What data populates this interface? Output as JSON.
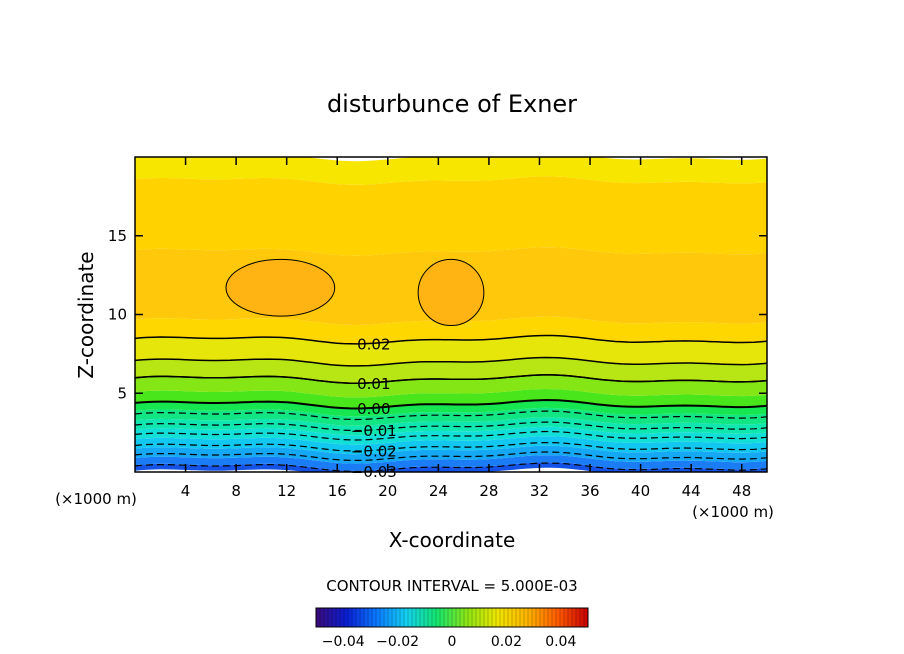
{
  "chart_data": {
    "type": "heatmap",
    "title": "disturbunce of Exner",
    "xlabel": "X-coordinate",
    "ylabel": "Z-coordinate",
    "x_unit_label": "(×1000 m)",
    "y_unit_label": "(×1000 m)",
    "xlim": [
      0,
      50
    ],
    "ylim": [
      0,
      20
    ],
    "x_ticks": [
      4,
      8,
      12,
      16,
      20,
      24,
      28,
      32,
      36,
      40,
      44,
      48
    ],
    "x_tick_labels": [
      "4",
      "8",
      "12",
      "16",
      "20",
      "24",
      "28",
      "32",
      "36",
      "40",
      "44",
      "48"
    ],
    "y_ticks": [
      5,
      10,
      15
    ],
    "y_tick_labels": [
      "5",
      "10",
      "15"
    ],
    "contour_interval_text": "CONTOUR INTERVAL = 5.000E-03",
    "contour_interval": 0.005,
    "contours": [
      {
        "value": -0.03,
        "label": "−0.03",
        "z": 0.3,
        "style": "dashed"
      },
      {
        "value": -0.025,
        "label": "",
        "z": 1.0,
        "style": "dashed"
      },
      {
        "value": -0.02,
        "label": "−0.02",
        "z": 1.6,
        "style": "dashed"
      },
      {
        "value": -0.015,
        "label": "",
        "z": 2.3,
        "style": "dashed"
      },
      {
        "value": -0.01,
        "label": "−0.01",
        "z": 2.9,
        "style": "dashed"
      },
      {
        "value": -0.005,
        "label": "",
        "z": 3.6,
        "style": "dashed"
      },
      {
        "value": 0.0,
        "label": "0.00",
        "z": 4.3,
        "style": "solid-bold"
      },
      {
        "value": 0.005,
        "label": "",
        "z": 5.9,
        "style": "solid"
      },
      {
        "value": 0.01,
        "label": "0.01",
        "z": 5.9,
        "style": "solid"
      },
      {
        "value": 0.015,
        "label": "",
        "z": 7.0,
        "style": "solid"
      },
      {
        "value": 0.02,
        "label": "0.02",
        "z": 8.4,
        "style": "solid"
      }
    ],
    "maxima_regions": [
      {
        "center_x": 11.5,
        "center_z": 11.7
      },
      {
        "center_x": 25.0,
        "center_z": 11.4
      }
    ],
    "colorbar": {
      "range": [
        -0.05,
        0.05
      ],
      "tick_values": [
        -0.04,
        -0.02,
        0,
        0.02,
        0.04
      ],
      "tick_labels": [
        "−0.04",
        "−0.02",
        "0",
        "0.02",
        "0.04"
      ],
      "colormap": [
        "#3b0a7a",
        "#0a1ed2",
        "#0a78ff",
        "#13d2f0",
        "#14e66e",
        "#8ce614",
        "#f0e600",
        "#ffb400",
        "#ff5a00",
        "#c80000"
      ]
    },
    "fill_bands": [
      {
        "from_z": 0.0,
        "to_z": 0.35,
        "color": "#1553e6"
      },
      {
        "from_z": 0.35,
        "to_z": 0.8,
        "color": "#1a7df6"
      },
      {
        "from_z": 0.8,
        "to_z": 1.4,
        "color": "#14a8f5"
      },
      {
        "from_z": 1.4,
        "to_z": 2.0,
        "color": "#13c8f0"
      },
      {
        "from_z": 2.0,
        "to_z": 2.6,
        "color": "#12dfd8"
      },
      {
        "from_z": 2.6,
        "to_z": 3.2,
        "color": "#10e6b0"
      },
      {
        "from_z": 3.2,
        "to_z": 3.8,
        "color": "#12e684"
      },
      {
        "from_z": 3.8,
        "to_z": 4.3,
        "color": "#16e650"
      },
      {
        "from_z": 4.3,
        "to_z": 5.0,
        "color": "#4ae61c"
      },
      {
        "from_z": 5.0,
        "to_z": 5.9,
        "color": "#84e614"
      },
      {
        "from_z": 5.9,
        "to_z": 7.0,
        "color": "#b8e614"
      },
      {
        "from_z": 7.0,
        "to_z": 8.4,
        "color": "#e6e60a"
      },
      {
        "from_z": 8.4,
        "to_z": 9.6,
        "color": "#ffd700"
      },
      {
        "from_z": 9.6,
        "to_z": 14.0,
        "color": "#ffc80a"
      },
      {
        "from_z": 14.0,
        "to_z": 18.5,
        "color": "#ffd200"
      },
      {
        "from_z": 18.5,
        "to_z": 20.0,
        "color": "#f7e600"
      }
    ]
  }
}
